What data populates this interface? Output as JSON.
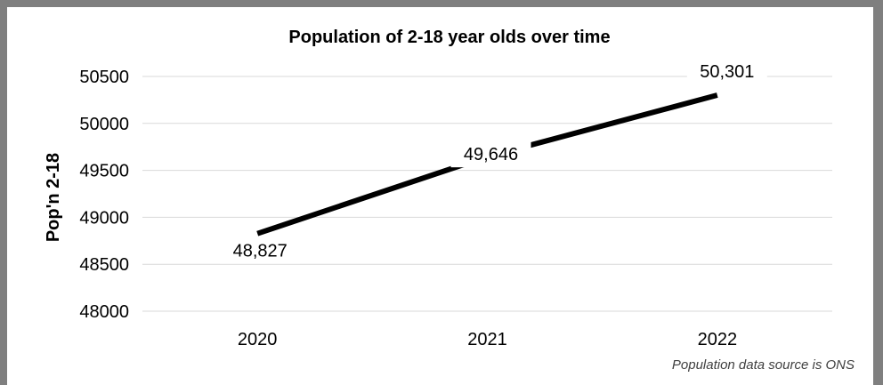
{
  "chart_data": {
    "type": "line",
    "title": "Population of 2-18 year olds over time",
    "xlabel": "",
    "ylabel": "Pop'n 2-18",
    "categories": [
      "2020",
      "2021",
      "2022"
    ],
    "series": [
      {
        "values": [
          48827,
          49646,
          50301
        ],
        "color": "#000000"
      }
    ],
    "data_labels": [
      "48,827",
      "49,646",
      "50,301"
    ],
    "ylim": [
      48000,
      50500
    ],
    "yticks": [
      50500,
      50000,
      49500,
      49000,
      48500,
      48000
    ],
    "grid": true,
    "legend": "none"
  },
  "source_note": "Population data source is ONS"
}
